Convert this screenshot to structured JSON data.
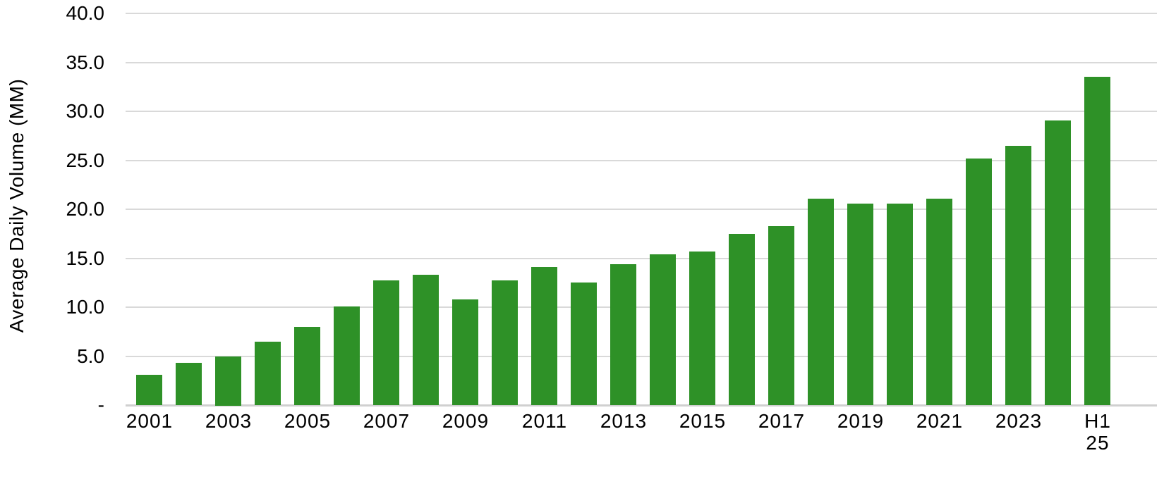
{
  "chart_data": {
    "type": "bar",
    "title": "",
    "xlabel": "",
    "ylabel": "Average Daily Volume (MM)",
    "series_name": "Average Daily Volume (MM)",
    "categories": [
      "2001",
      "2002",
      "2003",
      "2004",
      "2005",
      "2006",
      "2007",
      "2008",
      "2009",
      "2010",
      "2011",
      "2012",
      "2013",
      "2014",
      "2015",
      "2016",
      "2017",
      "2018",
      "2019",
      "2020",
      "2021",
      "2022",
      "2023",
      "2024",
      "H1 25"
    ],
    "values": [
      3.1,
      4.3,
      5.0,
      6.5,
      8.0,
      10.1,
      12.7,
      13.3,
      10.8,
      12.7,
      14.1,
      12.5,
      14.4,
      15.4,
      15.7,
      17.5,
      18.3,
      21.1,
      20.6,
      20.6,
      21.1,
      25.2,
      26.5,
      29.1,
      33.5
    ],
    "ylim": [
      0,
      40
    ],
    "y_ticks": [
      {
        "value": 40,
        "label": "40.0"
      },
      {
        "value": 35,
        "label": "35.0"
      },
      {
        "value": 30,
        "label": "30.0"
      },
      {
        "value": 25,
        "label": "25.0"
      },
      {
        "value": 20,
        "label": "20.0"
      },
      {
        "value": 15,
        "label": "15.0"
      },
      {
        "value": 10,
        "label": "10.0"
      },
      {
        "value": 5,
        "label": "5.0"
      },
      {
        "value": 0,
        "label": "-"
      }
    ],
    "x_ticks": [
      {
        "index": 0,
        "label": "2001"
      },
      {
        "index": 2,
        "label": "2003"
      },
      {
        "index": 4,
        "label": "2005"
      },
      {
        "index": 6,
        "label": "2007"
      },
      {
        "index": 8,
        "label": "2009"
      },
      {
        "index": 10,
        "label": "2011"
      },
      {
        "index": 12,
        "label": "2013"
      },
      {
        "index": 14,
        "label": "2015"
      },
      {
        "index": 16,
        "label": "2017"
      },
      {
        "index": 18,
        "label": "2019"
      },
      {
        "index": 20,
        "label": "2021"
      },
      {
        "index": 22,
        "label": "2023"
      },
      {
        "index": 24,
        "label": "H1 25"
      }
    ],
    "grid": "horizontal",
    "legend": "none",
    "bar_color": "#2e9127",
    "gridline_color": "#d9d9d9",
    "axis_line_color": "#d0d0d0",
    "text_color": "#000000",
    "background_color": "#ffffff"
  }
}
